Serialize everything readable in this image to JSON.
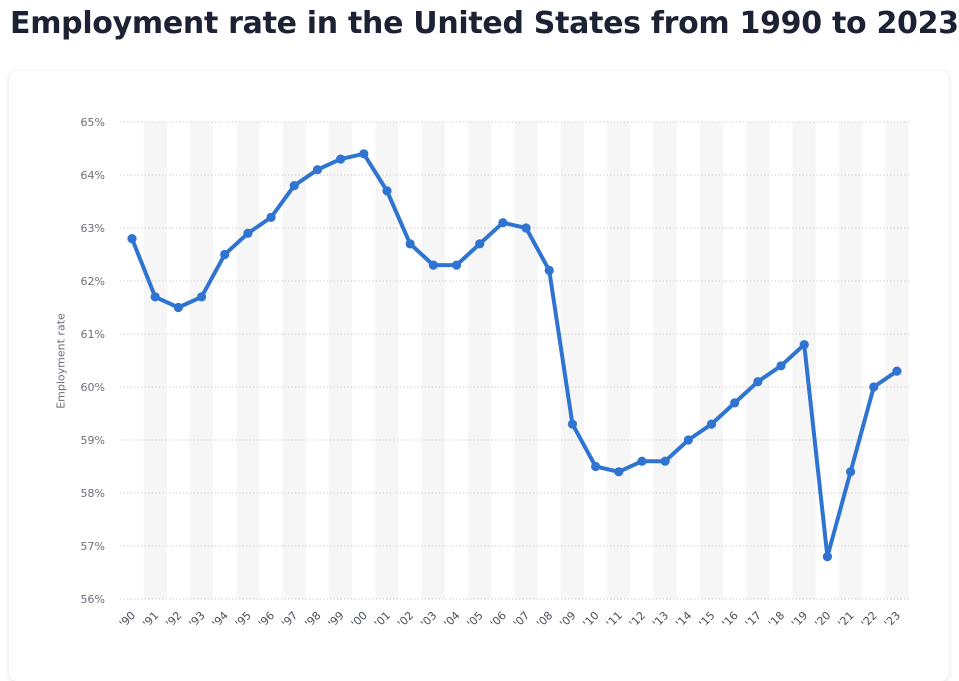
{
  "title": "Employment rate in the United States from 1990 to 2023",
  "chart_data": {
    "type": "line",
    "title": "Employment rate in the United States from 1990 to 2023",
    "xlabel": "",
    "ylabel": "Employment rate",
    "categories": [
      "'90",
      "'91",
      "'92",
      "'93",
      "'94",
      "'95",
      "'96",
      "'97",
      "'98",
      "'99",
      "'00",
      "'01",
      "'02",
      "'03",
      "'04",
      "'05",
      "'06",
      "'07",
      "'08",
      "'09",
      "'10",
      "'11",
      "'12",
      "'13",
      "'14",
      "'15",
      "'16",
      "'17",
      "'18",
      "'19",
      "'20",
      "'21",
      "'22",
      "'23"
    ],
    "series": [
      {
        "values": [
          62.8,
          61.7,
          61.5,
          61.7,
          62.5,
          62.9,
          63.2,
          63.8,
          64.1,
          64.3,
          64.4,
          63.7,
          62.7,
          62.3,
          62.3,
          62.7,
          63.1,
          63.0,
          62.2,
          59.3,
          58.5,
          58.4,
          58.6,
          58.6,
          59.0,
          59.3,
          59.7,
          60.1,
          60.4,
          60.8,
          56.8,
          58.4,
          60.0,
          60.3
        ]
      }
    ],
    "ylim": [
      56,
      65
    ],
    "yticks": [
      56,
      57,
      58,
      59,
      60,
      61,
      62,
      63,
      64,
      65
    ],
    "ytick_suffix": "%",
    "grid": true,
    "line_color": "#2f74d0",
    "band_color": "#f6f6f6",
    "grid_color": "#cfcfcf"
  }
}
